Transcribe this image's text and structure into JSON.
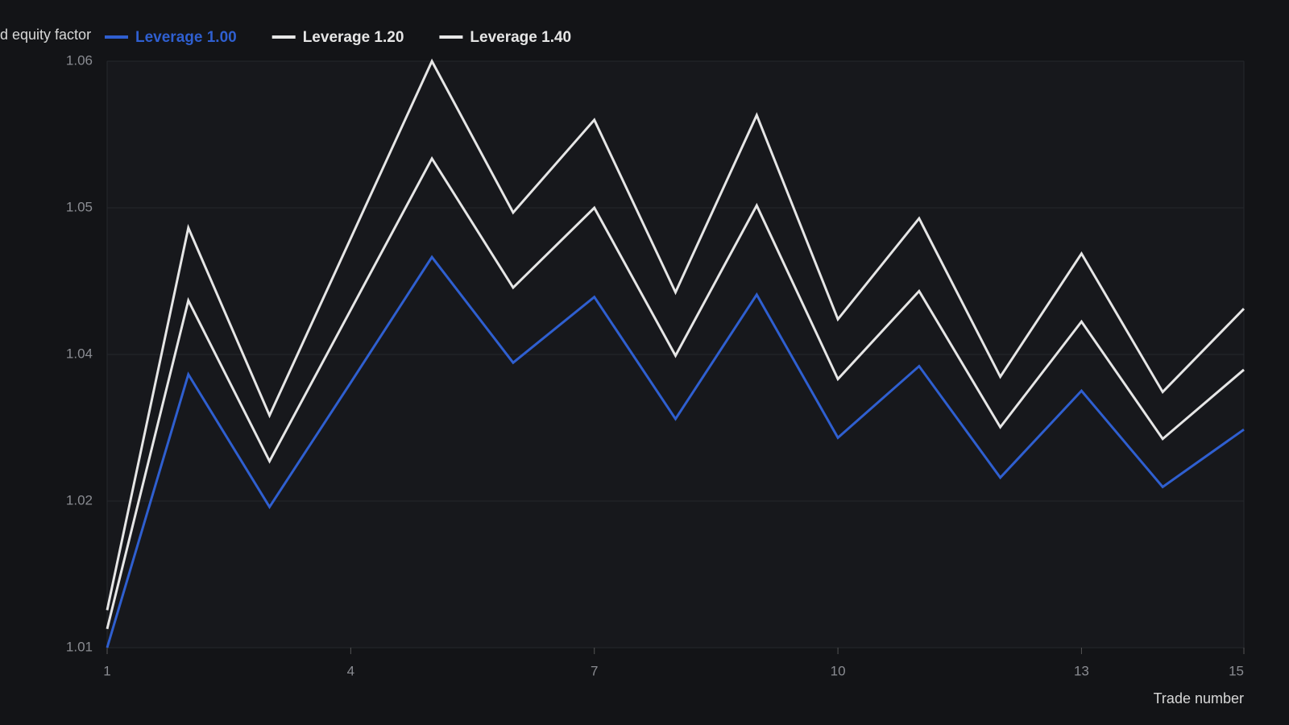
{
  "chart_data": {
    "type": "line",
    "y_label": "d equity factor",
    "x_label": "Trade number",
    "x": [
      1,
      2,
      3,
      4,
      5,
      6,
      7,
      8,
      9,
      10,
      11,
      12,
      13,
      14,
      15
    ],
    "xlim": [
      1,
      15
    ],
    "xticks": [
      1,
      4,
      7,
      10,
      13,
      15
    ],
    "ylim": [
      1.01,
      1.06
    ],
    "yticks": [
      1.01,
      {
        "value": 1.0225,
        "label": "1.02"
      },
      {
        "value": 1.035,
        "label": "1.04"
      },
      {
        "value": 1.0475,
        "label": "1.05"
      },
      1.06
    ],
    "grid": true,
    "legend": "top-left",
    "series": [
      {
        "name": "Leverage 1.00",
        "color": "#2f5fd0",
        "values": [
          1.01,
          1.0333,
          1.022,
          1.0326,
          1.0433,
          1.0343,
          1.0399,
          1.0295,
          1.0401,
          1.0279,
          1.034,
          1.0245,
          1.0319,
          1.0237,
          1.0286
        ]
      },
      {
        "name": "Leverage 1.20",
        "color": "#e6e6e6",
        "values": [
          1.0116,
          1.0396,
          1.0259,
          1.0388,
          1.0517,
          1.0407,
          1.0475,
          1.0349,
          1.0477,
          1.0329,
          1.0404,
          1.0288,
          1.0378,
          1.0278,
          1.0337
        ]
      },
      {
        "name": "Leverage 1.40",
        "color": "#e6e6e6",
        "values": [
          1.0132,
          1.0458,
          1.0298,
          1.0449,
          1.06,
          1.0471,
          1.055,
          1.0403,
          1.0554,
          1.038,
          1.0466,
          1.0331,
          1.0436,
          1.0318,
          1.0389
        ]
      }
    ]
  }
}
